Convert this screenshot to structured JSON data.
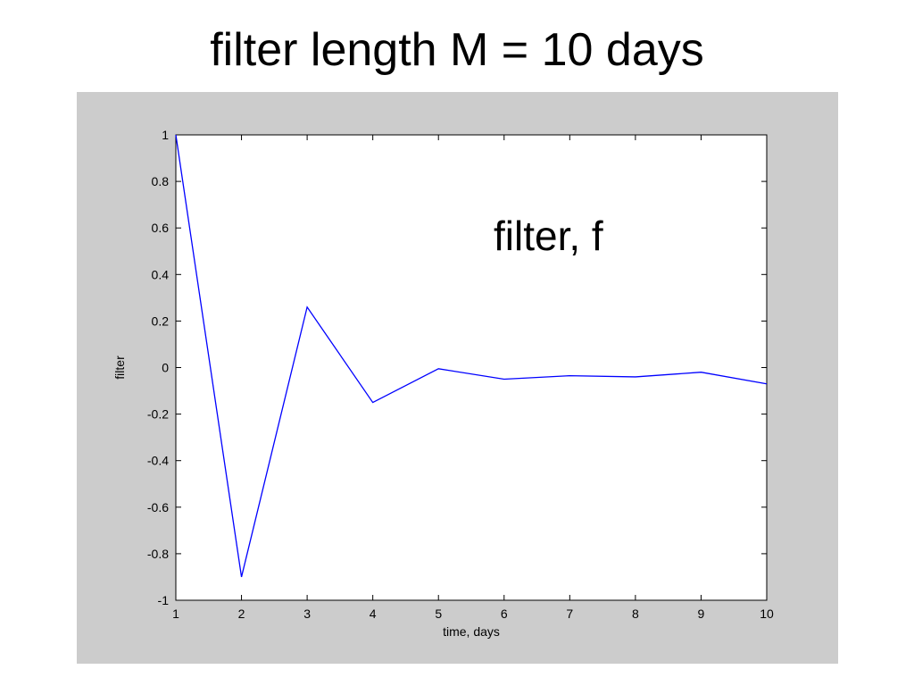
{
  "slide": {
    "title": "filter length M = 10 days"
  },
  "colors": {
    "figure_background": "#cccccc",
    "plot_background": "#ffffff",
    "series_line": "#0000ff"
  },
  "chart_data": {
    "type": "line",
    "title": "",
    "xlabel": "time, days",
    "ylabel": "filter",
    "xlim": [
      1,
      10
    ],
    "ylim": [
      -1,
      1
    ],
    "grid": false,
    "xticks": [
      1,
      2,
      3,
      4,
      5,
      6,
      7,
      8,
      9,
      10
    ],
    "yticks": [
      -1,
      -0.8,
      -0.6,
      -0.4,
      -0.2,
      0,
      0.2,
      0.4,
      0.6,
      0.8,
      1
    ],
    "annotation": "filter, f",
    "series": [
      {
        "x": [
          1,
          2,
          3,
          4,
          5,
          6,
          7,
          8,
          9,
          10
        ],
        "y": [
          1.0,
          -0.9,
          0.26,
          -0.15,
          -0.005,
          -0.05,
          -0.035,
          -0.04,
          -0.02,
          -0.07
        ]
      }
    ]
  }
}
